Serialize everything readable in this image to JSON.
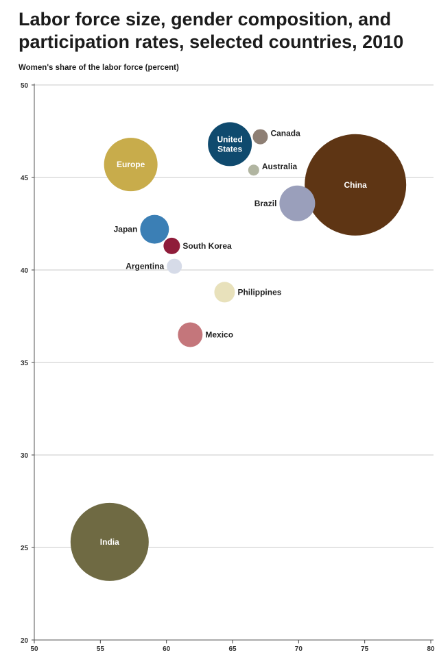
{
  "chart_data": {
    "type": "scatter",
    "title": "Labor force size, gender composition, and participation rates, selected countries, 2010",
    "ylabel": "Women's share of the labor force (percent)",
    "xlabel": "",
    "xlim": [
      50,
      80
    ],
    "ylim": [
      20,
      50
    ],
    "xticks": [
      50,
      55,
      60,
      65,
      70,
      75,
      80
    ],
    "yticks": [
      20,
      25,
      30,
      35,
      40,
      45,
      50
    ],
    "grid": true,
    "points": [
      {
        "name": "China",
        "x": 74.3,
        "y": 44.6,
        "size": 74,
        "color": "#5e3514",
        "label_pos": "inside"
      },
      {
        "name": "India",
        "x": 55.7,
        "y": 25.3,
        "size": 57,
        "color": "#6f6a43",
        "label_pos": "inside"
      },
      {
        "name": "Europe",
        "x": 57.3,
        "y": 45.7,
        "size": 39,
        "color": "#c8ac4b",
        "label_pos": "inside"
      },
      {
        "name": "United States",
        "x": 64.8,
        "y": 46.8,
        "size": 32,
        "color": "#0f4a6e",
        "label_pos": "inside"
      },
      {
        "name": "Brazil",
        "x": 69.9,
        "y": 43.6,
        "size": 26,
        "color": "#9a9fbb",
        "label_pos": "left"
      },
      {
        "name": "Japan",
        "x": 59.1,
        "y": 42.2,
        "size": 21,
        "color": "#3b7fb5",
        "label_pos": "left"
      },
      {
        "name": "Mexico",
        "x": 61.8,
        "y": 36.5,
        "size": 18,
        "color": "#c4767b",
        "label_pos": "right"
      },
      {
        "name": "Philippines",
        "x": 64.4,
        "y": 38.8,
        "size": 15,
        "color": "#e8e1bb",
        "label_pos": "right"
      },
      {
        "name": "South Korea",
        "x": 60.4,
        "y": 41.3,
        "size": 12,
        "color": "#8f1c3a",
        "label_pos": "right"
      },
      {
        "name": "Argentina",
        "x": 60.6,
        "y": 40.2,
        "size": 11,
        "color": "#d6dbe8",
        "label_pos": "left"
      },
      {
        "name": "Canada",
        "x": 67.1,
        "y": 47.2,
        "size": 11,
        "color": "#8e7f74",
        "label_pos": "right"
      },
      {
        "name": "Australia",
        "x": 66.6,
        "y": 45.4,
        "size": 8,
        "color": "#b1b5a1",
        "label_pos": "right"
      }
    ]
  }
}
